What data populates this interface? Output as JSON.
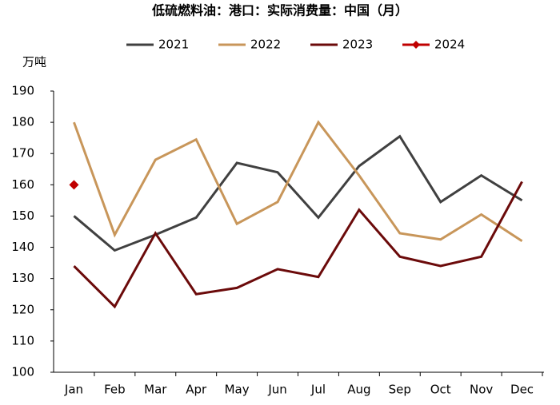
{
  "chart_data": {
    "type": "line",
    "title": "低硫燃料油：港口：实际消费量：中国（月）",
    "y_label": "万吨",
    "categories": [
      "Jan",
      "Feb",
      "Mar",
      "Apr",
      "May",
      "Jun",
      "Jul",
      "Aug",
      "Sep",
      "Oct",
      "Nov",
      "Dec"
    ],
    "series": [
      {
        "name": "2021",
        "color": "#404040",
        "values": [
          150,
          139,
          144,
          149.5,
          167,
          164,
          149.5,
          166,
          175.5,
          154.5,
          163,
          155
        ]
      },
      {
        "name": "2022",
        "color": "#c8965a",
        "values": [
          180,
          144,
          168,
          174.5,
          147.5,
          154.5,
          180,
          163,
          144.5,
          142.5,
          150.5,
          142
        ]
      },
      {
        "name": "2023",
        "color": "#6b0a0a",
        "values": [
          134,
          121,
          144.5,
          125,
          127,
          133,
          130.5,
          152,
          137,
          134,
          137,
          161
        ]
      },
      {
        "name": "2024",
        "color": "#c00000",
        "marker": "diamond",
        "values": [
          160,
          null,
          null,
          null,
          null,
          null,
          null,
          null,
          null,
          null,
          null,
          null
        ]
      }
    ],
    "ylim": [
      100,
      190
    ],
    "yticks": [
      100,
      110,
      120,
      130,
      140,
      150,
      160,
      170,
      180,
      190
    ],
    "grid": false
  }
}
